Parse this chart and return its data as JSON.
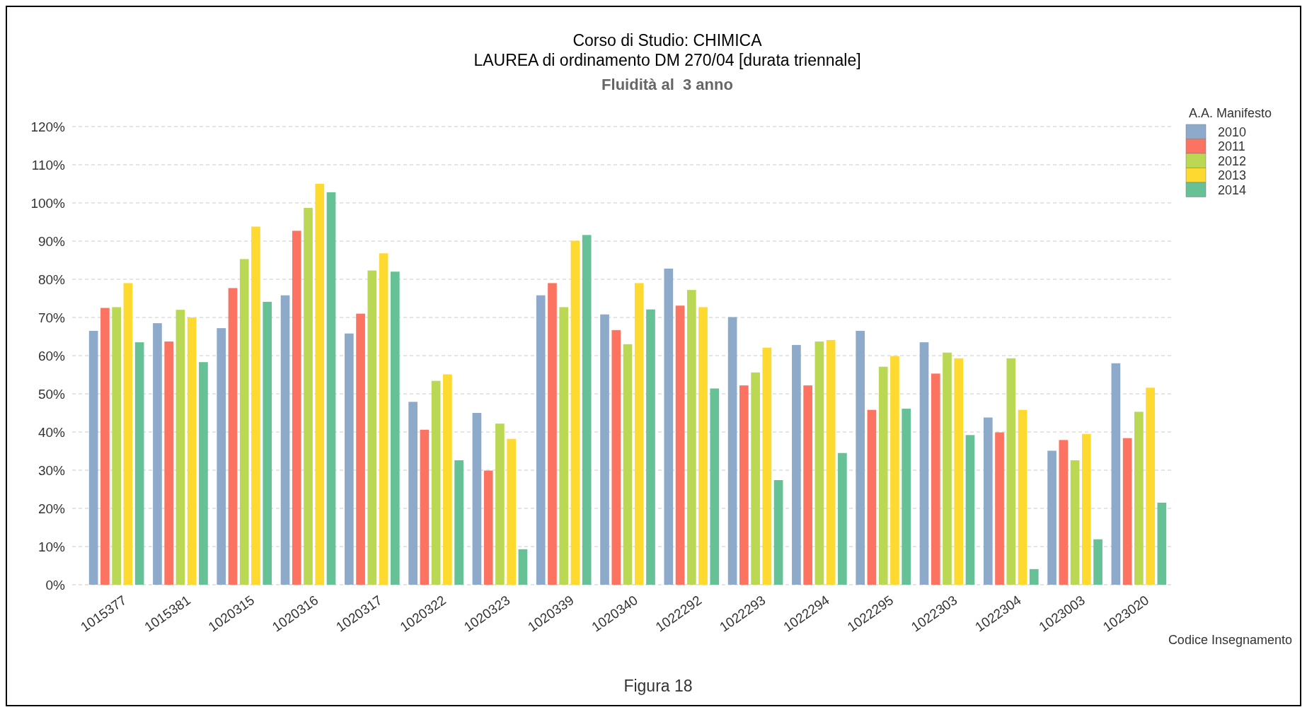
{
  "chart_data": {
    "type": "bar",
    "title": "Corso di Studio: CHIMICA\nLAUREA di ordinamento DM 270/04 [durata triennale]",
    "subtitle": "Fluidità al  3 anno",
    "xlabel": "Codice Insegnamento",
    "legend_title": "A.A. Manifesto",
    "annotations": [
      "Figura 18"
    ],
    "categories": [
      "1015377",
      "1015381",
      "1020315",
      "1020316",
      "1020317",
      "1020322",
      "1020323",
      "1020339",
      "1020340",
      "1022292",
      "1022293",
      "1022294",
      "1022295",
      "1022303",
      "1022304",
      "1023003",
      "1023020"
    ],
    "series": [
      {
        "name": "2010",
        "color": "#8eaacb",
        "values": [
          66.5,
          68.5,
          67.2,
          75.8,
          65.8,
          47.9,
          45,
          75.8,
          70.8,
          82.8,
          70.1,
          62.8,
          66.5,
          63.5,
          43.8,
          35.1,
          58
        ]
      },
      {
        "name": "2011",
        "color": "#fc7461",
        "values": [
          72.5,
          63.7,
          77.7,
          92.7,
          71,
          40.6,
          29.9,
          79,
          66.7,
          73.1,
          52.2,
          52.2,
          45.8,
          55.3,
          39.9,
          37.9,
          38.4
        ]
      },
      {
        "name": "2012",
        "color": "#bad854",
        "values": [
          72.7,
          72,
          85.3,
          98.7,
          82.3,
          53.4,
          42.2,
          72.7,
          63,
          77.2,
          55.6,
          63.7,
          57.1,
          60.8,
          59.3,
          32.6,
          45.3
        ]
      },
      {
        "name": "2013",
        "color": "#fed930",
        "values": [
          79,
          70,
          93.8,
          105,
          86.8,
          55.1,
          38.2,
          90.1,
          79,
          72.7,
          62.1,
          64.1,
          59.9,
          59.3,
          45.8,
          39.5,
          51.6
        ]
      },
      {
        "name": "2014",
        "color": "#66c296",
        "values": [
          63.5,
          58.3,
          74.1,
          102.8,
          82,
          32.6,
          9.3,
          91.6,
          72.1,
          51.4,
          27.4,
          34.5,
          46.1,
          39.2,
          4.1,
          11.9,
          21.5
        ]
      }
    ],
    "ylim": [
      0,
      120
    ],
    "yticks": [
      {
        "value": 0,
        "label": "0%"
      },
      {
        "value": 10,
        "label": "10%"
      },
      {
        "value": 20,
        "label": "20%"
      },
      {
        "value": 30,
        "label": "30%"
      },
      {
        "value": 40,
        "label": "40%"
      },
      {
        "value": 50,
        "label": "50%"
      },
      {
        "value": 60,
        "label": "60%"
      },
      {
        "value": 70,
        "label": "70%"
      },
      {
        "value": 80,
        "label": "80%"
      },
      {
        "value": 90,
        "label": "90%"
      },
      {
        "value": 100,
        "label": "100%"
      },
      {
        "value": 110,
        "label": "110%"
      },
      {
        "value": 120,
        "label": "120%"
      }
    ],
    "grid": "y",
    "legend": "top right"
  }
}
